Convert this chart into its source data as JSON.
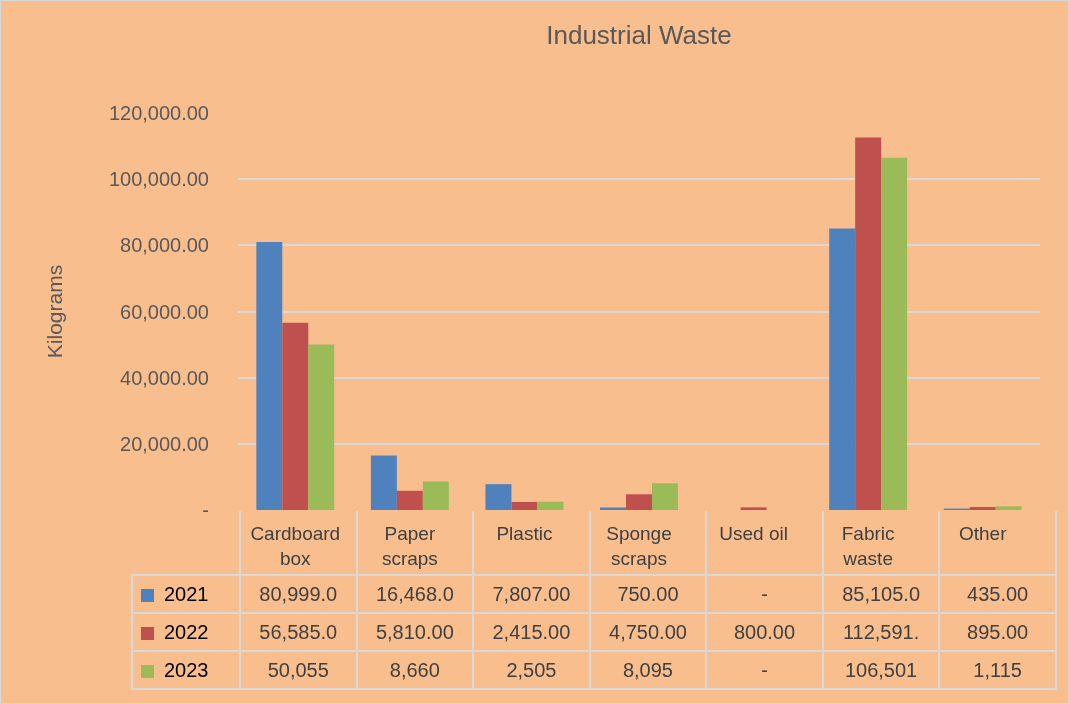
{
  "chart_data": {
    "type": "bar",
    "title": "Industrial Waste",
    "ylabel": "Kilograms",
    "categories": [
      "Cardboard box",
      "Paper scraps",
      "Plastic",
      "Sponge scraps",
      "Used oil",
      "Fabric waste",
      "Other"
    ],
    "series": [
      {
        "name": "2021",
        "color": "#4f81bd",
        "values": [
          80999,
          16468,
          7807,
          750,
          0,
          85105,
          435
        ],
        "value_labels": [
          "80,999.0",
          "16,468.0",
          "7,807.00",
          "750.00",
          "-",
          "85,105.0",
          "435.00"
        ]
      },
      {
        "name": "2022",
        "color": "#c0504d",
        "values": [
          56585,
          5810,
          2415,
          4750,
          800,
          112591,
          895
        ],
        "value_labels": [
          "56,585.0",
          "5,810.00",
          "2,415.00",
          "4,750.00",
          "800.00",
          "112,591.",
          "895.00"
        ]
      },
      {
        "name": "2023",
        "color": "#9bbb59",
        "values": [
          50055,
          8660,
          2505,
          8095,
          0,
          106501,
          1115
        ],
        "value_labels": [
          "50,055",
          "8,660",
          "2,505",
          "8,095",
          "-",
          "106,501",
          "1,115"
        ]
      }
    ],
    "ylim": [
      0,
      120000
    ],
    "yticks": [
      {
        "value": 0,
        "label": "-"
      },
      {
        "value": 20000,
        "label": "20,000.00"
      },
      {
        "value": 40000,
        "label": "40,000.00"
      },
      {
        "value": 60000,
        "label": "60,000.00"
      },
      {
        "value": 80000,
        "label": "80,000.00"
      },
      {
        "value": 100000,
        "label": "100,000.00"
      },
      {
        "value": 120000,
        "label": "120,000.00"
      }
    ],
    "grid": "y",
    "legend": "bottom"
  }
}
